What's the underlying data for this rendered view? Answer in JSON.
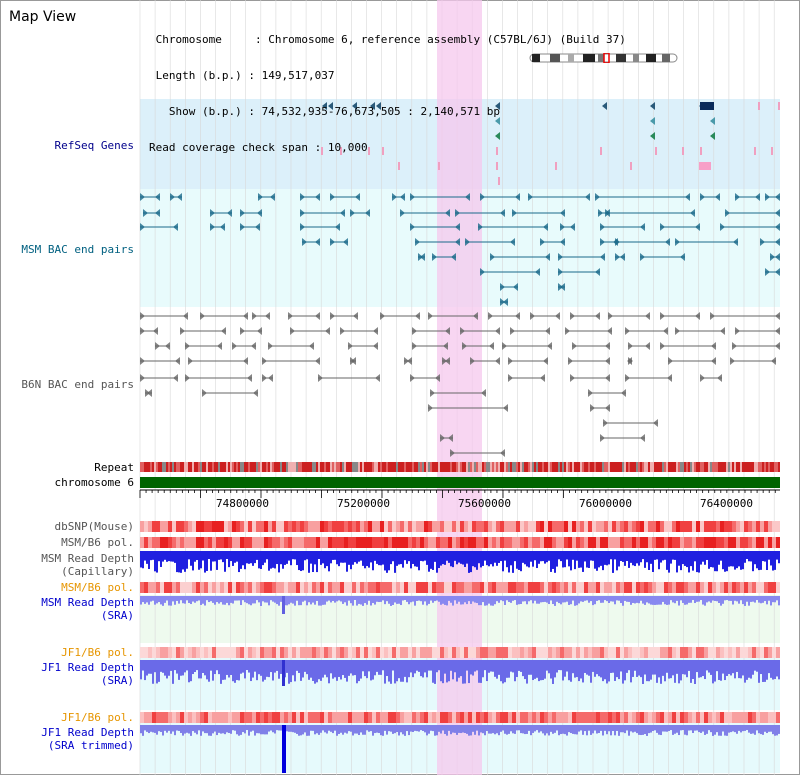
{
  "app": {
    "title": "Map View"
  },
  "info": {
    "chromosome_label": "Chromosome",
    "chromosome_value": "Chromosome 6, reference assembly (C57BL/6J) (Build 37)",
    "length_label": "Length (b.p.)",
    "length_value": "149,517,037",
    "show_label": "Show (b.p.)",
    "show_value": "74,532,935-76,673,505 : 2,140,571 bp",
    "coverage_label": "Read coverage check span",
    "coverage_value": "10,000"
  },
  "tracks": {
    "refseq": "RefSeq Genes",
    "msm_bac": "MSM BAC end pairs",
    "b6n_bac": "B6N BAC end pairs",
    "repeat": "Repeat",
    "chromosome": "chromosome 6",
    "dbsnp": "dbSNP(Mouse)",
    "msm_b6_pol_1": "MSM/B6 pol.",
    "msm_read_depth_cap_1": "MSM Read Depth",
    "msm_read_depth_cap_2": "(Capillary)",
    "msm_b6_pol_2": "MSM/B6 pol.",
    "msm_read_depth_sra_1": "MSM Read Depth",
    "msm_read_depth_sra_2": "(SRA)",
    "jf1_b6_pol_1": "JF1/B6 pol.",
    "jf1_read_depth_sra_1": "JF1 Read Depth",
    "jf1_read_depth_sra_2": "(SRA)",
    "jf1_b6_pol_2": "JF1/B6 pol.",
    "jf1_read_depth_trim_1": "JF1 Read Depth",
    "jf1_read_depth_trim_2": "(SRA trimmed)"
  },
  "axis": {
    "ticks": [
      "74800000",
      "75200000",
      "75600000",
      "76000000",
      "76400000"
    ]
  },
  "colors": {
    "refseq_label": "#00008b",
    "msm_label": "#006080",
    "b6n_label": "#555555",
    "orange_label": "#e69500",
    "blue_label": "#0000cc",
    "highlight": "#f5c8ee",
    "chromosome_bar": "#006400"
  }
}
